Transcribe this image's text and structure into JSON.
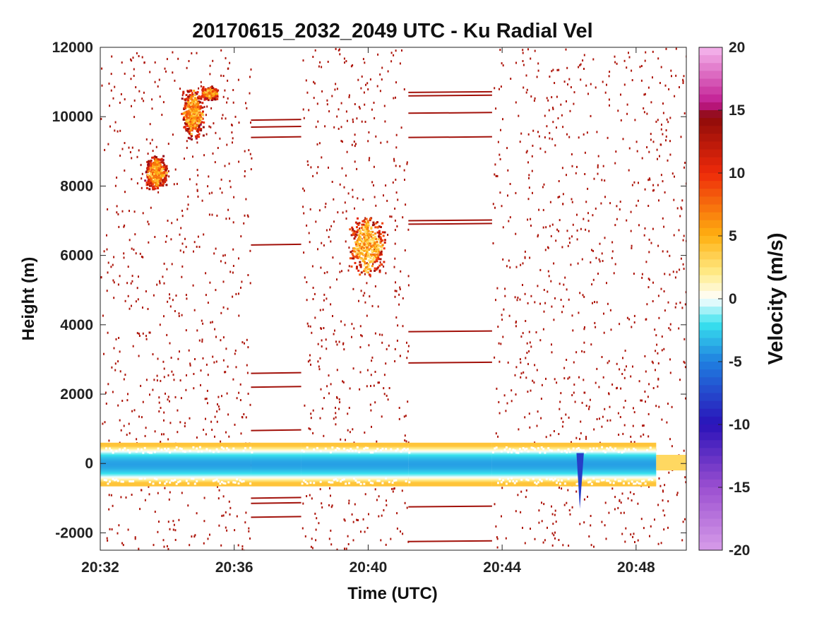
{
  "chart_data": {
    "type": "heatmap",
    "title": "20170615_2032_2049 UTC - Ku Radial Vel",
    "xlabel": "Time (UTC)",
    "ylabel": "Height (m)",
    "xlim_min": [
      32.0,
      49.5
    ],
    "x_ticks": [
      "20:32",
      "20:36",
      "20:40",
      "20:44",
      "20:48"
    ],
    "x_tick_values_min": [
      32,
      36,
      40,
      44,
      48
    ],
    "ylim": [
      -2500,
      12000
    ],
    "y_ticks": [
      -2000,
      0,
      2000,
      4000,
      6000,
      8000,
      10000,
      12000
    ],
    "colorbar": {
      "label": "Velocity (m/s)",
      "range": [
        -20,
        20
      ],
      "ticks": [
        20,
        15,
        10,
        5,
        0,
        -5,
        -10,
        -15,
        -20
      ],
      "stops": [
        {
          "v": -20,
          "c": "#d79ce8"
        },
        {
          "v": -15,
          "c": "#9b4fd0"
        },
        {
          "v": -10,
          "c": "#2a12b8"
        },
        {
          "v": -5,
          "c": "#1f7fe0"
        },
        {
          "v": -2,
          "c": "#38e2ee"
        },
        {
          "v": 0,
          "c": "#ffffff"
        },
        {
          "v": 2,
          "c": "#ffec8a"
        },
        {
          "v": 5,
          "c": "#ffb010"
        },
        {
          "v": 10,
          "c": "#ee2a0a"
        },
        {
          "v": 14.5,
          "c": "#8c0a0a"
        },
        {
          "v": 15.5,
          "c": "#c01890"
        },
        {
          "v": 20,
          "c": "#f6b8ef"
        }
      ]
    },
    "noise_scatter_velocity": 13,
    "data_gaps_min": [
      [
        36.5,
        38.0
      ],
      [
        41.2,
        43.7
      ]
    ],
    "surface_band": {
      "x_range_min": [
        32.0,
        48.6
      ],
      "height_range_m": [
        -650,
        600
      ],
      "core_velocity": -4,
      "edge_velocity": 4,
      "after_x_min": 48.6,
      "after_height_range_m": [
        -200,
        250
      ],
      "after_velocity": 3
    },
    "spike": {
      "x_min": 46.3,
      "velocity": -8,
      "min_height_m": -1300
    },
    "echo_clusters": [
      {
        "x_range_min": [
          33.3,
          34.0
        ],
        "height_range_m": [
          7900,
          8900
        ],
        "velocity": 6
      },
      {
        "x_range_min": [
          34.4,
          35.1
        ],
        "height_range_m": [
          9300,
          10900
        ],
        "velocity": 6
      },
      {
        "x_range_min": [
          35.0,
          35.5
        ],
        "height_range_m": [
          10500,
          10900
        ],
        "velocity": 6
      },
      {
        "x_range_min": [
          39.4,
          40.5
        ],
        "height_range_m": [
          5400,
          7200
        ],
        "velocity": 5
      }
    ],
    "gap_lines": [
      {
        "x_range_min": [
          36.5,
          38.0
        ],
        "height_m": 9900
      },
      {
        "x_range_min": [
          36.5,
          38.0
        ],
        "height_m": 9700
      },
      {
        "x_range_min": [
          36.5,
          38.0
        ],
        "height_m": 9400
      },
      {
        "x_range_min": [
          36.5,
          38.0
        ],
        "height_m": 6300
      },
      {
        "x_range_min": [
          36.5,
          38.0
        ],
        "height_m": 2600
      },
      {
        "x_range_min": [
          36.5,
          38.0
        ],
        "height_m": 2200
      },
      {
        "x_range_min": [
          36.5,
          38.0
        ],
        "height_m": 950
      },
      {
        "x_range_min": [
          36.5,
          38.0
        ],
        "height_m": -1000
      },
      {
        "x_range_min": [
          36.5,
          38.0
        ],
        "height_m": -1150
      },
      {
        "x_range_min": [
          36.5,
          38.0
        ],
        "height_m": -1550
      },
      {
        "x_range_min": [
          41.2,
          43.7
        ],
        "height_m": 10700
      },
      {
        "x_range_min": [
          41.2,
          43.7
        ],
        "height_m": 10600
      },
      {
        "x_range_min": [
          41.2,
          43.7
        ],
        "height_m": 10100
      },
      {
        "x_range_min": [
          41.2,
          43.7
        ],
        "height_m": 9400
      },
      {
        "x_range_min": [
          41.2,
          43.7
        ],
        "height_m": 7000
      },
      {
        "x_range_min": [
          41.2,
          43.7
        ],
        "height_m": 6900
      },
      {
        "x_range_min": [
          41.2,
          43.7
        ],
        "height_m": 3800
      },
      {
        "x_range_min": [
          41.2,
          43.7
        ],
        "height_m": 2900
      },
      {
        "x_range_min": [
          41.2,
          43.7
        ],
        "height_m": -1250
      },
      {
        "x_range_min": [
          41.2,
          43.7
        ],
        "height_m": -2250
      }
    ]
  }
}
